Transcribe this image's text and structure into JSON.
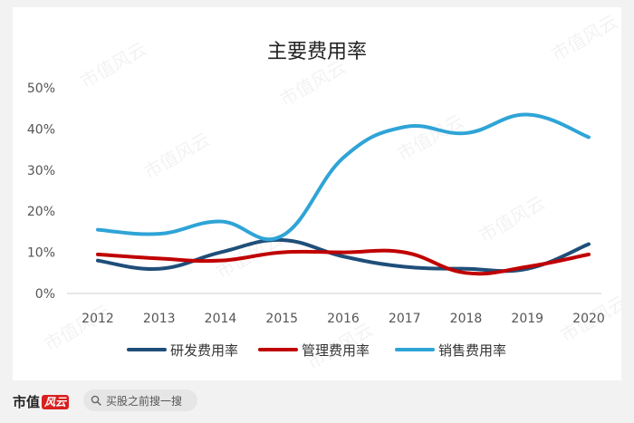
{
  "chart_data": {
    "type": "line",
    "title": "主要费用率",
    "categories": [
      "2012",
      "2013",
      "2014",
      "2015",
      "2016",
      "2017",
      "2018",
      "2019",
      "2020"
    ],
    "y_ticks": [
      "0%",
      "10%",
      "20%",
      "30%",
      "40%",
      "50%"
    ],
    "ylim": [
      0,
      50
    ],
    "grid": false,
    "legend_position": "bottom",
    "series": [
      {
        "name": "研发费用率",
        "color": "#1f4e79",
        "values": [
          8,
          6,
          10,
          13,
          9,
          6.5,
          6,
          6,
          12
        ]
      },
      {
        "name": "管理费用率",
        "color": "#c00000",
        "values": [
          9.5,
          8.5,
          8,
          10,
          10,
          10,
          5,
          6.5,
          9.5
        ]
      },
      {
        "name": "销售费用率",
        "color": "#2fa4d6",
        "values": [
          15.5,
          14.5,
          17.5,
          14,
          33,
          40.5,
          39,
          43.5,
          38
        ]
      }
    ]
  },
  "watermark": "市值风云",
  "footer": {
    "brand": "市值",
    "brand_script": "风云",
    "search_text": "买股之前搜一搜",
    "search_icon": "search-icon"
  }
}
